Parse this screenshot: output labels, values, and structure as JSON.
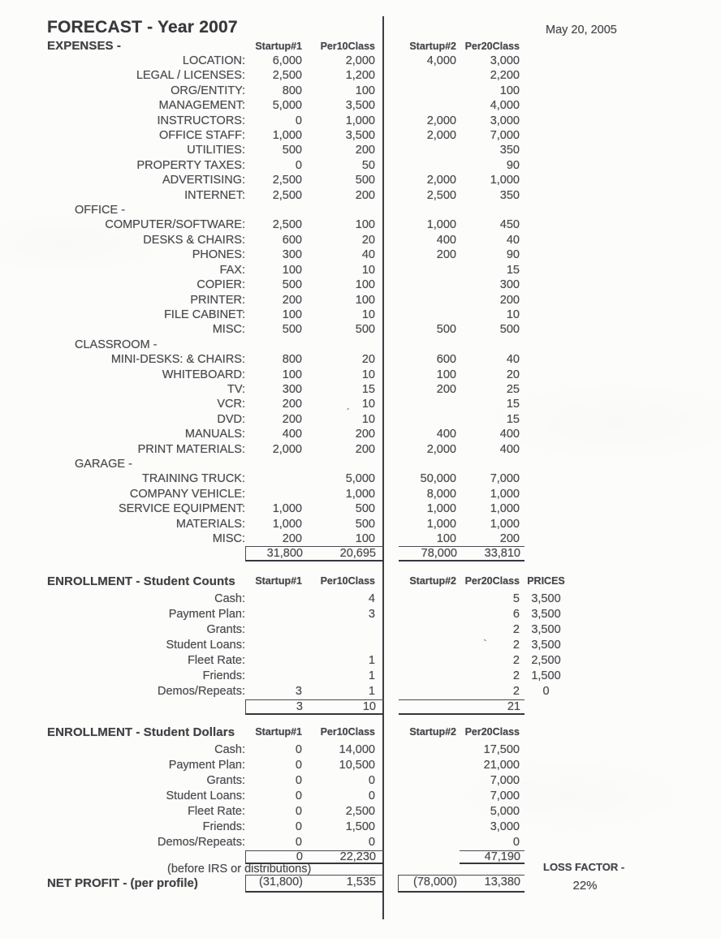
{
  "page": {
    "title": "FORECAST - Year 2007",
    "date": "May 20, 2005"
  },
  "columns": {
    "s1": "Startup#1",
    "p10": "Per10Class",
    "s2": "Startup#2",
    "p20": "Per20Class"
  },
  "expenses": {
    "heading": "EXPENSES -",
    "rows": [
      {
        "label": "LOCATION:",
        "s1": "6,000",
        "p10": "2,000",
        "s2": "4,000",
        "p20": "3,000"
      },
      {
        "label": "LEGAL / LICENSES:",
        "s1": "2,500",
        "p10": "1,200",
        "s2": "",
        "p20": "2,200"
      },
      {
        "label": "ORG/ENTITY:",
        "s1": "800",
        "p10": "100",
        "s2": "",
        "p20": "100"
      },
      {
        "label": "MANAGEMENT:",
        "s1": "5,000",
        "p10": "3,500",
        "s2": "",
        "p20": "4,000"
      },
      {
        "label": "INSTRUCTORS:",
        "s1": "0",
        "p10": "1,000",
        "s2": "2,000",
        "p20": "3,000"
      },
      {
        "label": "OFFICE STAFF:",
        "s1": "1,000",
        "p10": "3,500",
        "s2": "2,000",
        "p20": "7,000"
      },
      {
        "label": "UTILITIES:",
        "s1": "500",
        "p10": "200",
        "s2": "",
        "p20": "350"
      },
      {
        "label": "PROPERTY TAXES:",
        "s1": "0",
        "p10": "50",
        "s2": "",
        "p20": "90"
      },
      {
        "label": "ADVERTISING:",
        "s1": "2,500",
        "p10": "500",
        "s2": "2,000",
        "p20": "1,000"
      },
      {
        "label": "INTERNET:",
        "s1": "2,500",
        "p10": "200",
        "s2": "2,500",
        "p20": "350"
      },
      {
        "sub": "OFFICE -"
      },
      {
        "label": "COMPUTER/SOFTWARE:",
        "s1": "2,500",
        "p10": "100",
        "s2": "1,000",
        "p20": "450"
      },
      {
        "label": "DESKS & CHAIRS:",
        "s1": "600",
        "p10": "20",
        "s2": "400",
        "p20": "40"
      },
      {
        "label": "PHONES:",
        "s1": "300",
        "p10": "40",
        "s2": "200",
        "p20": "90"
      },
      {
        "label": "FAX:",
        "s1": "100",
        "p10": "10",
        "s2": "",
        "p20": "15"
      },
      {
        "label": "COPIER:",
        "s1": "500",
        "p10": "100",
        "s2": "",
        "p20": "300"
      },
      {
        "label": "PRINTER:",
        "s1": "200",
        "p10": "100",
        "s2": "",
        "p20": "200"
      },
      {
        "label": "FILE CABINET:",
        "s1": "100",
        "p10": "10",
        "s2": "",
        "p20": "10"
      },
      {
        "label": "MISC:",
        "s1": "500",
        "p10": "500",
        "s2": "500",
        "p20": "500"
      },
      {
        "sub": "CLASSROOM -"
      },
      {
        "label": "MINI-DESKS: & CHAIRS:",
        "s1": "800",
        "p10": "20",
        "s2": "600",
        "p20": "40"
      },
      {
        "label": "WHITEBOARD:",
        "s1": "100",
        "p10": "10",
        "s2": "100",
        "p20": "20"
      },
      {
        "label": "TV:",
        "s1": "300",
        "p10": "15",
        "s2": "200",
        "p20": "25"
      },
      {
        "label": "VCR:",
        "s1": "200",
        "p10": "10",
        "s2": "",
        "p20": "15"
      },
      {
        "label": "DVD:",
        "s1": "200",
        "p10": "10",
        "s2": "",
        "p20": "15"
      },
      {
        "label": "MANUALS:",
        "s1": "400",
        "p10": "200",
        "s2": "400",
        "p20": "400"
      },
      {
        "label": "PRINT MATERIALS:",
        "s1": "2,000",
        "p10": "200",
        "s2": "2,000",
        "p20": "400"
      },
      {
        "sub": "GARAGE -"
      },
      {
        "label": "TRAINING TRUCK:",
        "s1": "",
        "p10": "5,000",
        "s2": "50,000",
        "p20": "7,000"
      },
      {
        "label": "COMPANY VEHICLE:",
        "s1": "",
        "p10": "1,000",
        "s2": "8,000",
        "p20": "1,000"
      },
      {
        "label": "SERVICE EQUIPMENT:",
        "s1": "1,000",
        "p10": "500",
        "s2": "1,000",
        "p20": "1,000"
      },
      {
        "label": "MATERIALS:",
        "s1": "1,000",
        "p10": "500",
        "s2": "1,000",
        "p20": "1,000"
      },
      {
        "label": "MISC:",
        "s1": "200",
        "p10": "100",
        "s2": "100",
        "p20": "200"
      }
    ],
    "totals": {
      "s1": "31,800",
      "p10": "20,695",
      "s2": "78,000",
      "p20": "33,810"
    }
  },
  "counts": {
    "heading": "ENROLLMENT - Student Counts",
    "prices_heading": "PRICES",
    "rows": [
      {
        "label": "Cash:",
        "s1": "",
        "p10": "4",
        "s2": "",
        "p20": "5",
        "price": "3,500"
      },
      {
        "label": "Payment Plan:",
        "s1": "",
        "p10": "3",
        "s2": "",
        "p20": "6",
        "price": "3,500"
      },
      {
        "label": "Grants:",
        "s1": "",
        "p10": "",
        "s2": "",
        "p20": "2",
        "price": "3,500"
      },
      {
        "label": "Student Loans:",
        "s1": "",
        "p10": "",
        "s2": "",
        "p20": "2",
        "price": "3,500"
      },
      {
        "label": "Fleet Rate:",
        "s1": "",
        "p10": "1",
        "s2": "",
        "p20": "2",
        "price": "2,500"
      },
      {
        "label": "Friends:",
        "s1": "",
        "p10": "1",
        "s2": "",
        "p20": "2",
        "price": "1,500"
      },
      {
        "label": "Demos/Repeats:",
        "s1": "3",
        "p10": "1",
        "s2": "",
        "p20": "2",
        "price": "0"
      }
    ],
    "totals": {
      "s1": "3",
      "p10": "10",
      "s2": "",
      "p20": "21"
    }
  },
  "dollars": {
    "heading": "ENROLLMENT - Student Dollars",
    "rows": [
      {
        "label": "Cash:",
        "s1": "0",
        "p10": "14,000",
        "s2": "",
        "p20": "17,500"
      },
      {
        "label": "Payment Plan:",
        "s1": "0",
        "p10": "10,500",
        "s2": "",
        "p20": "21,000"
      },
      {
        "label": "Grants:",
        "s1": "0",
        "p10": "0",
        "s2": "",
        "p20": "7,000"
      },
      {
        "label": "Student Loans:",
        "s1": "0",
        "p10": "0",
        "s2": "",
        "p20": "7,000"
      },
      {
        "label": "Fleet Rate:",
        "s1": "0",
        "p10": "2,500",
        "s2": "",
        "p20": "5,000"
      },
      {
        "label": "Friends:",
        "s1": "0",
        "p10": "1,500",
        "s2": "",
        "p20": "3,000"
      },
      {
        "label": "Demos/Repeats:",
        "s1": "0",
        "p10": "0",
        "s2": "",
        "p20": "0"
      }
    ],
    "totals": {
      "s1": "0",
      "p10": "22,230",
      "s2": "",
      "p20": "47,190"
    },
    "note": "(before IRS or distributions)"
  },
  "net_profit": {
    "label": "NET PROFIT - (per profile)",
    "s1": "(31,800)",
    "p10": "1,535",
    "s2": "(78,000)",
    "p20": "13,380"
  },
  "loss_factor": {
    "label": "LOSS FACTOR -",
    "value": "22%"
  },
  "artifacts": {
    "tick1": "´",
    "tick2": "`"
  }
}
